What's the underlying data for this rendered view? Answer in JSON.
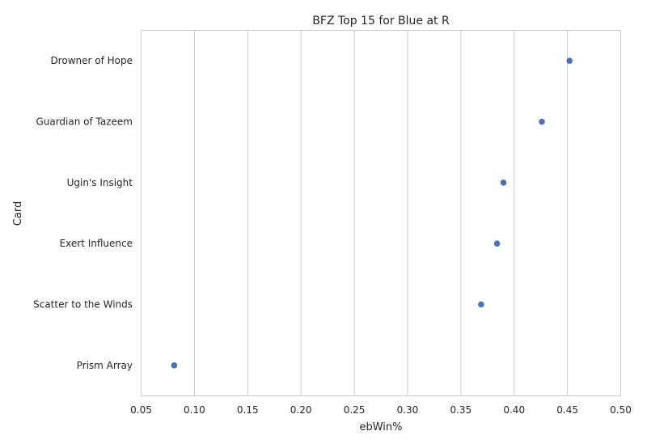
{
  "chart_data": {
    "type": "scatter",
    "title": "BFZ Top 15 for Blue at R",
    "xlabel": "ebWin%",
    "ylabel": "Card",
    "xlim": [
      0.05,
      0.5
    ],
    "xticks": [
      "0.05",
      "0.10",
      "0.15",
      "0.20",
      "0.25",
      "0.30",
      "0.35",
      "0.40",
      "0.45",
      "0.50"
    ],
    "categories": [
      "Drowner of Hope",
      "Guardian of Tazeem",
      "Ugin's Insight",
      "Exert Influence",
      "Scatter to the Winds",
      "Prism Array"
    ],
    "values": [
      0.452,
      0.426,
      0.39,
      0.384,
      0.369,
      0.081
    ],
    "grid": "vertical",
    "point_color": "#4c72b0"
  }
}
